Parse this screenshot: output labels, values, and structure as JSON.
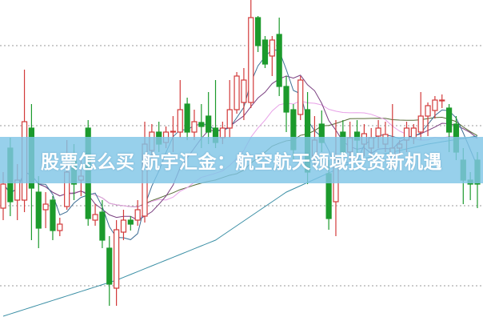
{
  "title": "股票怎么买 航宇汇金：航空航天领域投资新机遇",
  "chart_data": {
    "type": "candlestick",
    "grid": true,
    "ylim": [
      0,
      40
    ],
    "grid_levels": [
      34.3,
      24.3,
      14.3,
      4.3
    ],
    "colors": {
      "up": "#d23a3a",
      "down": "#1c9a2c",
      "ma5": "#3f6f95",
      "ma10": "#7a3f80",
      "ma20": "#e7a0e7",
      "ma30": "#566b36",
      "ma_long": "#3b8fa5",
      "grid": "#999999",
      "banner": "#80c6e6"
    },
    "candles": [
      [
        14.0,
        18.5,
        12.5,
        17.0
      ],
      [
        21.5,
        22.8,
        13.0,
        14.8
      ],
      [
        15.0,
        19.5,
        12.5,
        17.5
      ],
      [
        15.0,
        31.3,
        13.5,
        24.8
      ],
      [
        24.0,
        27.0,
        10.0,
        16.5
      ],
      [
        16.0,
        18.0,
        9.0,
        11.5
      ],
      [
        13.8,
        16.0,
        11.5,
        14.5
      ],
      [
        15.0,
        15.5,
        10.0,
        11.2
      ],
      [
        11.2,
        12.8,
        10.5,
        12.0
      ],
      [
        14.2,
        22.5,
        13.8,
        18.5
      ],
      [
        20.0,
        22.0,
        15.0,
        17.0
      ],
      [
        17.5,
        20.0,
        15.5,
        18.0
      ],
      [
        24.0,
        25.0,
        11.8,
        12.7
      ],
      [
        12.5,
        14.5,
        11.8,
        13.2
      ],
      [
        13.5,
        15.0,
        9.0,
        10.0
      ],
      [
        9.0,
        10.5,
        1.8,
        4.5
      ],
      [
        4.0,
        12.5,
        1.8,
        11.3
      ],
      [
        11.0,
        13.8,
        10.0,
        12.5
      ],
      [
        12.5,
        13.0,
        11.2,
        12.0
      ],
      [
        12.5,
        15.0,
        11.8,
        13.8
      ],
      [
        13.0,
        24.8,
        12.2,
        22.0
      ],
      [
        21.2,
        24.5,
        20.0,
        23.5
      ],
      [
        23.5,
        24.8,
        21.0,
        22.0
      ],
      [
        22.2,
        24.2,
        21.5,
        23.5
      ],
      [
        23.5,
        25.5,
        21.0,
        23.6
      ],
      [
        23.5,
        30.0,
        22.8,
        26.3
      ],
      [
        27.0,
        27.8,
        22.5,
        23.5
      ],
      [
        23.5,
        26.3,
        22.5,
        24.8
      ],
      [
        24.7,
        27.0,
        21.5,
        24.2
      ],
      [
        25.5,
        28.5,
        22.0,
        23.5
      ],
      [
        24.0,
        30.0,
        21.5,
        22.2
      ],
      [
        22.8,
        24.8,
        22.0,
        24.0
      ],
      [
        24.0,
        30.0,
        22.8,
        26.3
      ],
      [
        26.3,
        31.0,
        25.8,
        30.5
      ],
      [
        27.2,
        31.5,
        25.0,
        30.0
      ],
      [
        27.2,
        40.0,
        26.5,
        37.8
      ],
      [
        37.8,
        38.0,
        33.5,
        34.3
      ],
      [
        35.0,
        35.5,
        31.5,
        32.0
      ],
      [
        33.0,
        35.5,
        30.5,
        35.0
      ],
      [
        35.7,
        37.8,
        28.0,
        29.2
      ],
      [
        29.2,
        30.5,
        23.5,
        26.0
      ],
      [
        26.3,
        27.0,
        20.0,
        21.3
      ],
      [
        25.7,
        30.5,
        25.0,
        30.0
      ],
      [
        26.3,
        28.5,
        17.0,
        18.5
      ],
      [
        20.5,
        25.5,
        19.0,
        22.5
      ],
      [
        24.5,
        26.2,
        21.0,
        22.2
      ],
      [
        18.3,
        20.0,
        11.3,
        12.7
      ],
      [
        14.8,
        25.0,
        10.5,
        20.0
      ],
      [
        23.5,
        25.0,
        20.0,
        21.0
      ],
      [
        21.0,
        24.8,
        20.0,
        22.8
      ],
      [
        23.5,
        25.0,
        20.5,
        22.5
      ],
      [
        22.0,
        24.5,
        20.5,
        23.3
      ],
      [
        21.5,
        24.0,
        20.0,
        22.8
      ],
      [
        23.0,
        25.0,
        21.5,
        24.0
      ],
      [
        22.0,
        24.8,
        21.0,
        23.2
      ],
      [
        20.5,
        27.0,
        19.0,
        21.5
      ],
      [
        21.5,
        22.5,
        20.5,
        22.0
      ],
      [
        22.5,
        24.8,
        21.0,
        24.0
      ],
      [
        22.8,
        24.5,
        22.0,
        24.0
      ],
      [
        23.5,
        28.5,
        22.5,
        25.5
      ],
      [
        25.5,
        27.2,
        23.0,
        26.8
      ],
      [
        26.2,
        28.0,
        25.2,
        27.5
      ],
      [
        27.5,
        28.2,
        26.5,
        27.5
      ],
      [
        26.5,
        27.0,
        21.0,
        23.5
      ],
      [
        24.5,
        25.5,
        20.0,
        21.0
      ],
      [
        20.0,
        21.5,
        14.5,
        17.5
      ],
      [
        17.5,
        18.5,
        15.0,
        17.0
      ],
      [
        20.0,
        21.0,
        14.0,
        17.0
      ]
    ],
    "candle_fields": [
      "open",
      "high",
      "low",
      "close"
    ],
    "ma_long_anchors": [
      [
        0,
        0.5
      ],
      [
        16,
        5.0
      ],
      [
        30,
        10.0
      ],
      [
        40,
        16.0
      ],
      [
        50,
        20.0
      ],
      [
        60,
        22.0
      ],
      [
        67,
        23.0
      ]
    ]
  }
}
